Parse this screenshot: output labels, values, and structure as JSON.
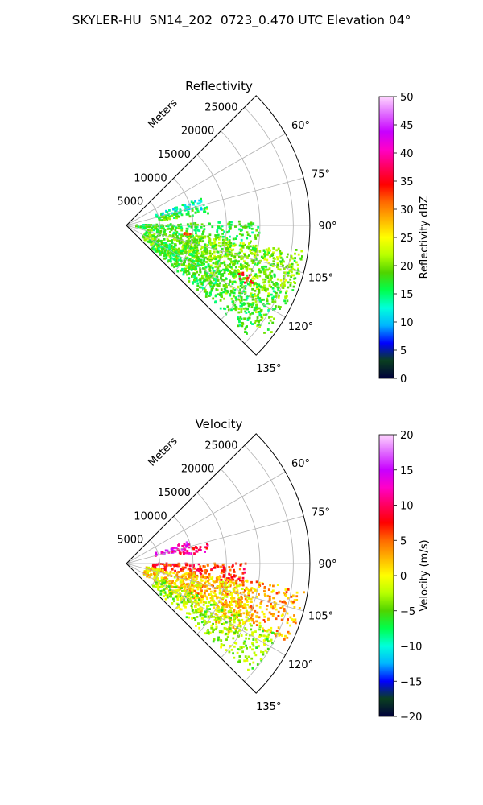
{
  "suptitle": "SKYLER-HU  SN14_202  0723_0.470 UTC Elevation 04°",
  "chart_data": [
    {
      "type": "polar-sector-heatmap",
      "title": "Reflectivity",
      "range_axis_label": "Meters",
      "range_ticks": [
        "5000",
        "10000",
        "15000",
        "20000",
        "25000"
      ],
      "range_tick_values": [
        5000,
        10000,
        15000,
        20000,
        25000
      ],
      "range_max": 27500,
      "azimuth_range_deg": [
        45,
        135
      ],
      "azimuth_ticks": [
        "60°",
        "75°",
        "90°",
        "105°",
        "120°",
        "135°"
      ],
      "azimuth_tick_values": [
        60,
        75,
        90,
        105,
        120,
        135
      ],
      "grid": true,
      "colorbar": {
        "label": "Reflectivity dBZ",
        "min": 0,
        "max": 50,
        "ticks": [
          "0",
          "5",
          "10",
          "15",
          "20",
          "25",
          "30",
          "35",
          "40",
          "45",
          "50"
        ],
        "stops": [
          "#00003a",
          "#0a3f1f",
          "#0000ff",
          "#00b4ff",
          "#00ffdc",
          "#00ff4c",
          "#4fd400",
          "#b8ff00",
          "#ffff00",
          "#ffb400",
          "#ff6a00",
          "#ff0000",
          "#ff0060",
          "#ff00c8",
          "#c800ff",
          "#e06aff",
          "#ffd6ff"
        ]
      },
      "echoes": [
        {
          "az": [
            70,
            78
          ],
          "range_m": [
            4500,
            12000
          ],
          "value": 13
        },
        {
          "az": [
            76,
            82
          ],
          "range_m": [
            5000,
            12500
          ],
          "value": 18
        },
        {
          "az": [
            88,
            100
          ],
          "range_m": [
            1500,
            20000
          ],
          "value": 17
        },
        {
          "az": [
            98,
            116
          ],
          "range_m": [
            9000,
            27000
          ],
          "value": 21
        },
        {
          "az": [
            100,
            128
          ],
          "range_m": [
            3000,
            27000
          ],
          "value": 19
        },
        {
          "az": [
            114,
            132
          ],
          "range_m": [
            5000,
            25000
          ],
          "value": 17
        },
        {
          "az": [
            112,
            116
          ],
          "range_m": [
            18000,
            21000
          ],
          "value": 34
        },
        {
          "az": [
            95,
            99
          ],
          "range_m": [
            8500,
            9800
          ],
          "value": 33
        }
      ]
    },
    {
      "type": "polar-sector-heatmap",
      "title": "Velocity",
      "range_axis_label": "Meters",
      "range_ticks": [
        "5000",
        "10000",
        "15000",
        "20000",
        "25000"
      ],
      "range_tick_values": [
        5000,
        10000,
        15000,
        20000,
        25000
      ],
      "range_max": 27500,
      "azimuth_range_deg": [
        45,
        135
      ],
      "azimuth_ticks": [
        "60°",
        "75°",
        "90°",
        "105°",
        "120°",
        "135°"
      ],
      "azimuth_tick_values": [
        60,
        75,
        90,
        105,
        120,
        135
      ],
      "grid": true,
      "colorbar": {
        "label": "Velocity (m/s)",
        "min": -20,
        "max": 20,
        "ticks": [
          "−20",
          "−15",
          "−10",
          "−5",
          "0",
          "5",
          "10",
          "15",
          "20"
        ],
        "stops": [
          "#00003a",
          "#0a3f1f",
          "#0000ff",
          "#00b4ff",
          "#00ffdc",
          "#00ff4c",
          "#4fd400",
          "#b8ff00",
          "#ffff00",
          "#ffb400",
          "#ff6a00",
          "#ff0000",
          "#ff0060",
          "#ff00c8",
          "#c800ff",
          "#e06aff",
          "#ffd6ff"
        ]
      },
      "echoes": [
        {
          "az": [
            70,
            77
          ],
          "range_m": [
            4500,
            10000
          ],
          "value": 13
        },
        {
          "az": [
            76,
            82
          ],
          "range_m": [
            8000,
            12500
          ],
          "value": 10
        },
        {
          "az": [
            90,
            100
          ],
          "range_m": [
            4000,
            18000
          ],
          "value": 7
        },
        {
          "az": [
            98,
            116
          ],
          "range_m": [
            9000,
            27000
          ],
          "value": 3
        },
        {
          "az": [
            100,
            124
          ],
          "range_m": [
            3000,
            20000
          ],
          "value": 1
        },
        {
          "az": [
            114,
            132
          ],
          "range_m": [
            5000,
            25000
          ],
          "value": -3
        }
      ]
    }
  ]
}
